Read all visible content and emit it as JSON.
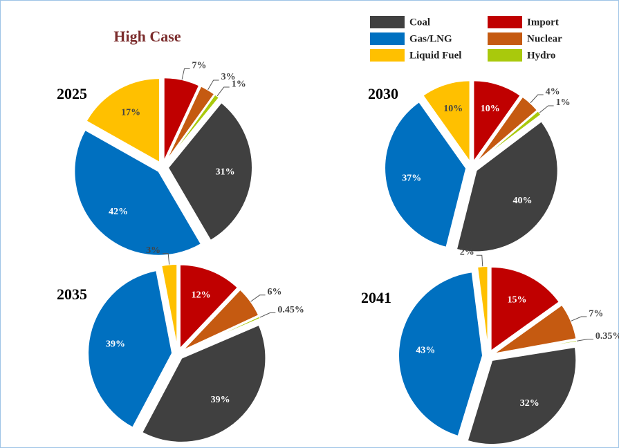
{
  "title": "High Case",
  "chart_data": [
    {
      "type": "pie",
      "title": "2025",
      "categories": [
        "Coal",
        "Gas/LNG",
        "Liquid Fuel",
        "Import",
        "Nuclear",
        "Hydro"
      ],
      "values": [
        31,
        42,
        17,
        7,
        3,
        1
      ],
      "value_labels": [
        "31%",
        "42%",
        "17%",
        "7%",
        "3%",
        "1%"
      ],
      "colors": [
        "#404040",
        "#0070c0",
        "#ffc000",
        "#c00000",
        "#c55a11",
        "#a9c90c"
      ]
    },
    {
      "type": "pie",
      "title": "2030",
      "categories": [
        "Coal",
        "Gas/LNG",
        "Liquid Fuel",
        "Import",
        "Nuclear",
        "Hydro"
      ],
      "values": [
        40,
        37,
        10,
        10,
        4,
        1
      ],
      "value_labels": [
        "40%",
        "37%",
        "10%",
        "10%",
        "4%",
        "1%"
      ],
      "colors": [
        "#404040",
        "#0070c0",
        "#ffc000",
        "#c00000",
        "#c55a11",
        "#a9c90c"
      ]
    },
    {
      "type": "pie",
      "title": "2035",
      "categories": [
        "Coal",
        "Gas/LNG",
        "Liquid Fuel",
        "Import",
        "Nuclear",
        "Hydro"
      ],
      "values": [
        39,
        39,
        3,
        12,
        6,
        0.45
      ],
      "value_labels": [
        "39%",
        "39%",
        "3%",
        "12%",
        "6%",
        "0.45%"
      ],
      "colors": [
        "#404040",
        "#0070c0",
        "#ffc000",
        "#c00000",
        "#c55a11",
        "#a9c90c"
      ]
    },
    {
      "type": "pie",
      "title": "2041",
      "categories": [
        "Coal",
        "Gas/LNG",
        "Liquid Fuel",
        "Import",
        "Nuclear",
        "Hydro"
      ],
      "values": [
        32,
        43,
        2,
        15,
        7,
        0.35
      ],
      "value_labels": [
        "32%",
        "43%",
        "2%",
        "15%",
        "7%",
        "0.35%"
      ],
      "colors": [
        "#404040",
        "#0070c0",
        "#ffc000",
        "#c00000",
        "#c55a11",
        "#a9c90c"
      ]
    }
  ]
}
